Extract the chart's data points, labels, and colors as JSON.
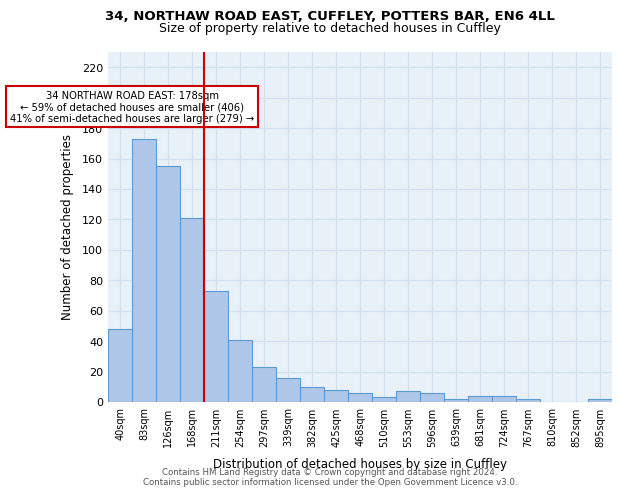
{
  "title_line1": "34, NORTHAW ROAD EAST, CUFFLEY, POTTERS BAR, EN6 4LL",
  "title_line2": "Size of property relative to detached houses in Cuffley",
  "xlabel": "Distribution of detached houses by size in Cuffley",
  "ylabel": "Number of detached properties",
  "categories": [
    "40sqm",
    "83sqm",
    "126sqm",
    "168sqm",
    "211sqm",
    "254sqm",
    "297sqm",
    "339sqm",
    "382sqm",
    "425sqm",
    "468sqm",
    "510sqm",
    "553sqm",
    "596sqm",
    "639sqm",
    "681sqm",
    "724sqm",
    "767sqm",
    "810sqm",
    "852sqm",
    "895sqm"
  ],
  "values": [
    48,
    173,
    155,
    121,
    73,
    41,
    23,
    16,
    10,
    8,
    6,
    3,
    7,
    6,
    2,
    4,
    4,
    2,
    0,
    0,
    2
  ],
  "bar_color": "#aec6e8",
  "bar_edge_color": "#5b9bd5",
  "vline_x": 3.5,
  "vline_color": "#cc0000",
  "annotation_text": "34 NORTHAW ROAD EAST: 178sqm\n← 59% of detached houses are smaller (406)\n41% of semi-detached houses are larger (279) →",
  "annotation_box_color": "#ffffff",
  "annotation_box_edge": "#cc0000",
  "footer": "Contains HM Land Registry data © Crown copyright and database right 2024.\nContains public sector information licensed under the Open Government Licence v3.0.",
  "ylim": [
    0,
    230
  ],
  "yticks": [
    0,
    20,
    40,
    60,
    80,
    100,
    120,
    140,
    160,
    180,
    200,
    220
  ],
  "grid_color": "#d0e0f0",
  "background_color": "#e8f0f8"
}
